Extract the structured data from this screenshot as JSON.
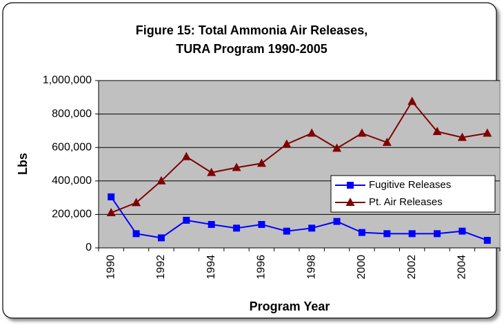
{
  "chart_data": {
    "type": "line",
    "title": "Figure 15: Total Ammonia Air Releases,",
    "subtitle": "TURA Program 1990-2005",
    "x_label": "Program Year",
    "y_label": "Lbs",
    "categories": [
      "1990",
      null,
      "1992",
      null,
      "1994",
      null,
      "1996",
      null,
      "1998",
      null,
      "2000",
      null,
      "2002",
      null,
      "2004",
      null
    ],
    "series": [
      {
        "name": "Fugitive Releases",
        "color": "#0000ff",
        "marker": "square",
        "values": [
          305000,
          85000,
          60000,
          165000,
          140000,
          118000,
          140000,
          100000,
          118000,
          158000,
          92000,
          85000,
          85000,
          85000,
          100000,
          45000
        ]
      },
      {
        "name": "Pt. Air Releases",
        "color": "#800000",
        "marker": "triangle",
        "values": [
          210000,
          270000,
          400000,
          545000,
          450000,
          480000,
          505000,
          620000,
          685000,
          595000,
          685000,
          630000,
          875000,
          695000,
          660000,
          685000
        ]
      }
    ],
    "ylim": [
      0,
      1000000
    ],
    "yticks": [
      0,
      {
        "value": 200000,
        "label": "200,000"
      },
      {
        "value": 400000,
        "label": "400,000"
      },
      {
        "value": 600000,
        "label": "600,000"
      },
      {
        "value": 800000,
        "label": "800,000"
      },
      {
        "value": 1000000,
        "label": "1,000,000"
      }
    ],
    "grid": true,
    "legend": "right"
  }
}
